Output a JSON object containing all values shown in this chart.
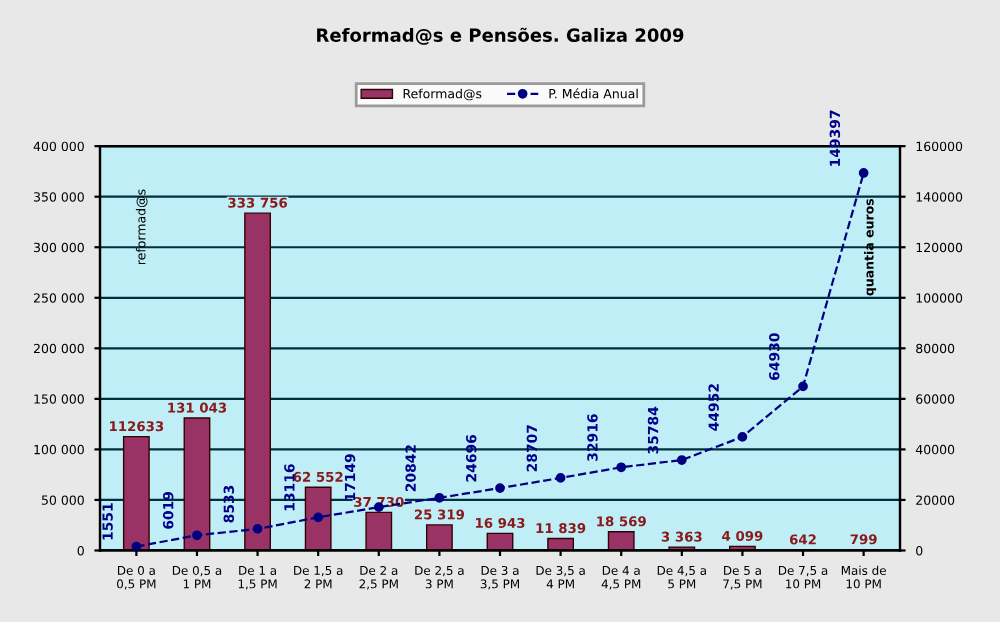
{
  "chart_data": {
    "type": "bar",
    "title": "Reformad@s e Pensões. Galiza 2009",
    "ylabel": "reformad@s",
    "y2label": "quantia euros",
    "categories": [
      "De 0 a\n0,5 PM",
      "De 0,5 a\n1 PM",
      "De 1 a\n1,5 PM",
      "De 1,5 a\n2 PM",
      "De 2 a\n2,5 PM",
      "De 2,5 a\n3 PM",
      "De 3 a\n3,5 PM",
      "De 3,5 a\n4 PM",
      "De 4 a\n4,5 PM",
      "De 4,5 a\n5 PM",
      "De 5 a\n7,5 PM",
      "De 7,5 a\n10 PM",
      "Mais de\n10 PM"
    ],
    "series": [
      {
        "name": "Reformad@s",
        "color": "#993366",
        "values": [
          112633,
          131043,
          333756,
          62552,
          37730,
          25319,
          16943,
          11839,
          18569,
          3363,
          4099,
          642,
          799
        ],
        "value_labels": [
          "112633",
          "131 043",
          "333 756",
          "62 552",
          "37 730",
          "25 319",
          "16 943",
          "11 839",
          "18 569",
          "3 363",
          "4 099",
          "642",
          "799"
        ]
      },
      {
        "name": "P. Média Anual",
        "type": "line",
        "axis": "y2",
        "color": "#000080",
        "line_style": "dashed",
        "marker": "circle",
        "values": [
          1551,
          6019,
          8533,
          13116,
          17149,
          20842,
          24696,
          28707,
          32916,
          35784,
          44952,
          64930,
          149397
        ],
        "value_labels": [
          "1551",
          "6019",
          "8533",
          "13116",
          "17149",
          "20842",
          "24696",
          "28707",
          "32916",
          "35784",
          "44952",
          "64930",
          "149397"
        ]
      }
    ],
    "ylim": [
      0,
      400000
    ],
    "yticks": [
      {
        "value": 0,
        "label": "0"
      },
      {
        "value": 50000,
        "label": "50 000"
      },
      {
        "value": 100000,
        "label": "100 000"
      },
      {
        "value": 150000,
        "label": "150 000"
      },
      {
        "value": 200000,
        "label": "200 000"
      },
      {
        "value": 250000,
        "label": "250 000"
      },
      {
        "value": 300000,
        "label": "300 000"
      },
      {
        "value": 350000,
        "label": "350 000"
      },
      {
        "value": 400000,
        "label": "400 000"
      }
    ],
    "y2lim": [
      0,
      160000
    ],
    "y2ticks": [
      0,
      20000,
      40000,
      60000,
      80000,
      100000,
      120000,
      140000,
      160000
    ],
    "grid": "y",
    "legend": "top"
  }
}
